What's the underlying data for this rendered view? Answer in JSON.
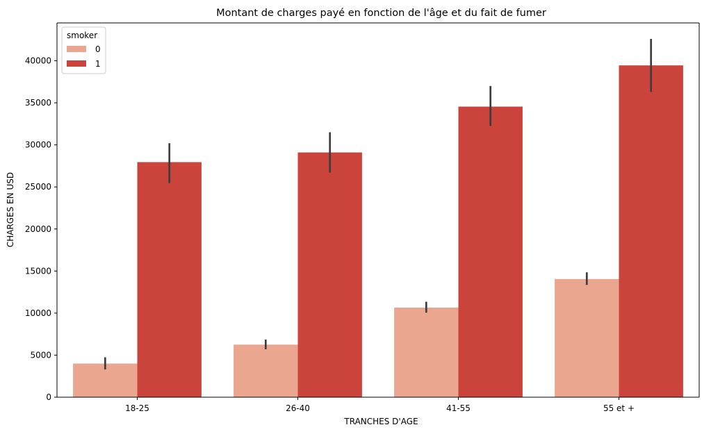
{
  "chart_data": {
    "type": "bar",
    "title": "Montant de charges payé en fonction de l'âge et du fait de fumer",
    "xlabel": "TRANCHES D'AGE",
    "ylabel": "CHARGES EN USD",
    "categories": [
      "18-25",
      "26-40",
      "41-55",
      "55 et +"
    ],
    "ylim": [
      0,
      44500
    ],
    "yticks": [
      0,
      5000,
      10000,
      15000,
      20000,
      25000,
      30000,
      35000,
      40000
    ],
    "legend": {
      "title": "smoker",
      "position": "top-left"
    },
    "grid": false,
    "series": [
      {
        "name": "0",
        "color": "#eba68f",
        "values": [
          4000,
          6250,
          10650,
          14050
        ],
        "error_low": [
          3300,
          5700,
          10050,
          13350
        ],
        "error_high": [
          4750,
          6850,
          11350,
          14850
        ]
      },
      {
        "name": "1",
        "color": "#cb443c",
        "values": [
          27950,
          29100,
          34550,
          39450
        ],
        "error_low": [
          25450,
          26700,
          32250,
          36300
        ],
        "error_high": [
          30200,
          31500,
          37000,
          42600
        ]
      }
    ]
  }
}
